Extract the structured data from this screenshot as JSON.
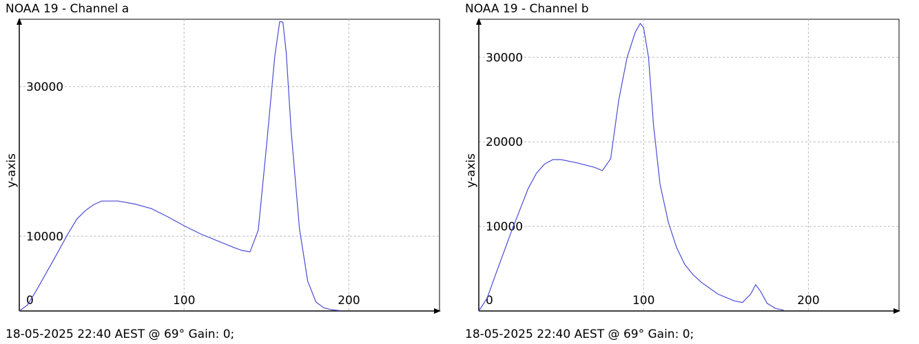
{
  "chart_data": [
    {
      "type": "line",
      "title": "NOAA 19 - Channel a",
      "ylabel": "y-axis",
      "xlabel": "",
      "footer": "18-05-2025 22:40 AEST @ 69° Gain: 0;",
      "xlim": [
        0,
        255
      ],
      "ylim": [
        0,
        39000
      ],
      "grid": true,
      "xticks": [
        0,
        100,
        200
      ],
      "xtick_labels": [
        "0",
        "100",
        "200"
      ],
      "yticks": [
        10000,
        30000
      ],
      "ytick_labels": [
        "10000",
        "30000"
      ],
      "series": [
        {
          "color": "#4a4ad6",
          "x": [
            0,
            5,
            10,
            20,
            30,
            35,
            40,
            45,
            50,
            60,
            70,
            80,
            90,
            100,
            110,
            120,
            130,
            135,
            140,
            145,
            150,
            155,
            158,
            160,
            162,
            165,
            170,
            175,
            180,
            185,
            190,
            195
          ],
          "y": [
            0,
            800,
            2600,
            6500,
            10500,
            12300,
            13400,
            14200,
            14700,
            14700,
            14300,
            13700,
            12600,
            11400,
            10300,
            9400,
            8500,
            8100,
            7900,
            10800,
            22000,
            34000,
            38700,
            38600,
            34500,
            24000,
            11000,
            4000,
            1200,
            400,
            150,
            50
          ]
        }
      ]
    },
    {
      "type": "line",
      "title": "NOAA 19 - Channel b",
      "ylabel": "y-axis",
      "xlabel": "",
      "footer": "18-05-2025 22:40 AEST @ 69° Gain: 0;",
      "xlim": [
        0,
        255
      ],
      "ylim": [
        0,
        34500
      ],
      "grid": true,
      "xticks": [
        0,
        100,
        200
      ],
      "xtick_labels": [
        "0",
        "100",
        "200"
      ],
      "yticks": [
        10000,
        20000,
        30000
      ],
      "ytick_labels": [
        "10000",
        "20000",
        "30000"
      ],
      "series": [
        {
          "color": "#4a4ad6",
          "x": [
            0,
            5,
            10,
            20,
            30,
            35,
            40,
            45,
            50,
            60,
            70,
            75,
            80,
            85,
            90,
            95,
            98,
            100,
            103,
            106,
            110,
            115,
            120,
            125,
            130,
            135,
            140,
            145,
            150,
            155,
            160,
            165,
            168,
            171,
            175,
            180,
            185
          ],
          "y": [
            0,
            1500,
            4200,
            9500,
            14500,
            16300,
            17400,
            17900,
            17900,
            17500,
            17000,
            16600,
            18000,
            25000,
            30000,
            33000,
            34000,
            33500,
            30000,
            22000,
            15000,
            10500,
            7500,
            5500,
            4300,
            3400,
            2700,
            2000,
            1600,
            1200,
            1000,
            2000,
            3100,
            2300,
            900,
            300,
            100
          ]
        }
      ]
    }
  ]
}
